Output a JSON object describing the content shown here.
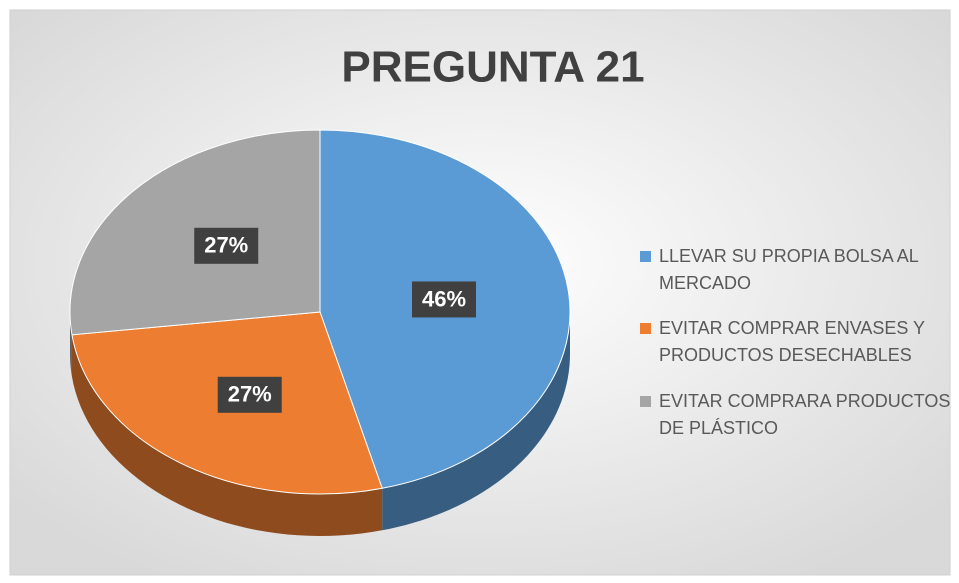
{
  "chart_data": {
    "type": "pie",
    "title": "PREGUNTA 21",
    "categories": [
      "LLEVAR SU PROPIA BOLSA AL MERCADO",
      "EVITAR COMPRAR ENVASES Y PRODUCTOS DESECHABLES",
      "EVITAR COMPRARA PRODUCTOS DE PLÁSTICO"
    ],
    "values": [
      46,
      27,
      27
    ],
    "value_labels": [
      "46%",
      "27%",
      "27%"
    ],
    "colors": [
      "#5b9bd5",
      "#ed7d31",
      "#a5a5a5"
    ],
    "legend": "right"
  }
}
